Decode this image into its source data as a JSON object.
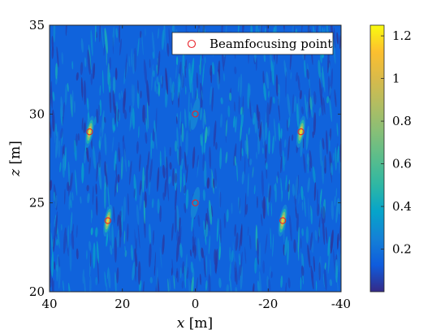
{
  "chart_data": {
    "type": "heatmap",
    "title": "",
    "xlabel_var": "x",
    "xlabel_unit": "[m]",
    "ylabel_var": "z",
    "ylabel_unit": "[m]",
    "xlim": [
      40,
      -40
    ],
    "ylim": [
      20,
      35
    ],
    "x_reversed": true,
    "xticks": [
      40,
      20,
      0,
      -20,
      -40
    ],
    "xtick_labels": [
      "40",
      "20",
      "0",
      "-20",
      "-40"
    ],
    "yticks": [
      20,
      25,
      30,
      35
    ],
    "ytick_labels": [
      "20",
      "25",
      "30",
      "35"
    ],
    "colorbar": {
      "ticks": [
        0.2,
        0.4,
        0.6,
        0.8,
        1,
        1.2
      ],
      "tick_labels": [
        "0.2",
        "0.4",
        "0.6",
        "0.8",
        "1",
        "1.2"
      ],
      "range": [
        0.0,
        1.25
      ],
      "colormap": "parula"
    },
    "legend": {
      "entries": [
        "Beamfocusing point"
      ],
      "position": "top-right",
      "marker": "circle",
      "marker_color": "#e8232a"
    },
    "background_level": 0.15,
    "points": [
      {
        "x": 29,
        "z": 29,
        "peak": 1.2
      },
      {
        "x": 0,
        "z": 30,
        "peak": 0.35
      },
      {
        "x": -29,
        "z": 29,
        "peak": 1.2
      },
      {
        "x": 24,
        "z": 24,
        "peak": 1.15
      },
      {
        "x": 0,
        "z": 25,
        "peak": 0.35
      },
      {
        "x": -24,
        "z": 24,
        "peak": 1.15
      }
    ]
  }
}
